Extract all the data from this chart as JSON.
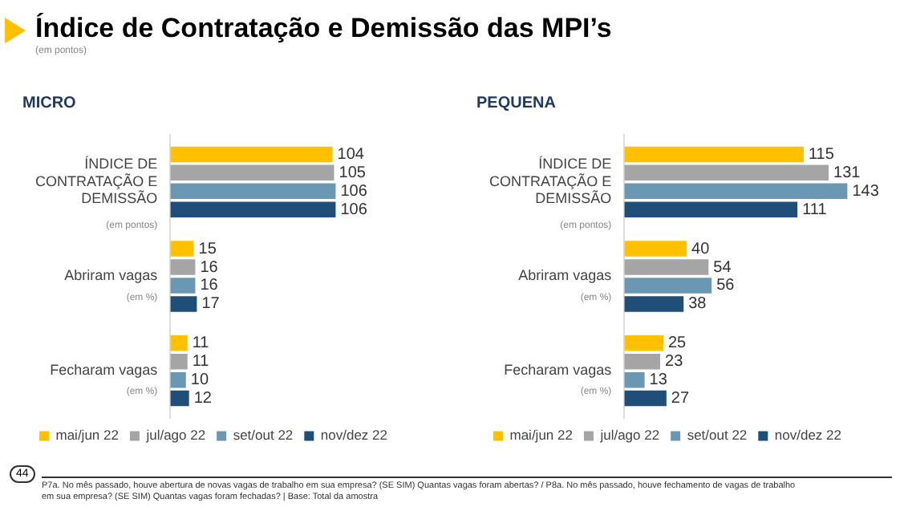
{
  "chart_data": [
    {
      "type": "other",
      "title": "Índice de Contratação e Demissão das MPI’s",
      "subtitle": "(em pontos)",
      "annotations": [
        "44",
        "P7a. No mês passado, houve abertura de novas vagas de trabalho em sua empresa? (SE SIM) Quantas vagas foram abertas? / P8a. No mês passado, houve fechamento de vagas de trabalho em sua empresa? (SE SIM) Quantas vagas foram fechadas? | Base: Total da amostra"
      ]
    },
    {
      "type": "bar",
      "orientation": "horizontal",
      "title": "MICRO",
      "categories": [
        "ÍNDICE DE CONTRATAÇÃO E DEMISSÃO",
        "Abriram vagas",
        "Fecharam vagas"
      ],
      "series": [
        {
          "name": "mai/jun 22",
          "color": "#ffc000",
          "values": [
            104,
            15,
            11
          ]
        },
        {
          "name": "jul/ago 22",
          "color": "#a5a5a5",
          "values": [
            105,
            16,
            11
          ]
        },
        {
          "name": "set/out 22",
          "color": "#6a98b4",
          "values": [
            106,
            16,
            10
          ]
        },
        {
          "name": "nov/dez 22",
          "color": "#1f4e79",
          "values": [
            106,
            17,
            12
          ]
        }
      ],
      "tick_labels": "y",
      "data_labels": true,
      "legend": "bottom",
      "annotations": [
        "(em pontos)",
        "(em %)",
        "(em %)"
      ]
    },
    {
      "type": "bar",
      "orientation": "horizontal",
      "title": "PEQUENA",
      "categories": [
        "ÍNDICE DE CONTRATAÇÃO E DEMISSÃO",
        "Abriram vagas",
        "Fecharam vagas"
      ],
      "series": [
        {
          "name": "mai/jun 22",
          "color": "#ffc000",
          "values": [
            115,
            40,
            25
          ]
        },
        {
          "name": "jul/ago 22",
          "color": "#a5a5a5",
          "values": [
            131,
            54,
            23
          ]
        },
        {
          "name": "set/out 22",
          "color": "#6a98b4",
          "values": [
            143,
            56,
            13
          ]
        },
        {
          "name": "nov/dez 22",
          "color": "#1f4e79",
          "values": [
            111,
            38,
            27
          ]
        }
      ],
      "tick_labels": "y",
      "data_labels": true,
      "legend": "bottom",
      "annotations": [
        "(em pontos)",
        "(em %)",
        "(em %)"
      ]
    }
  ]
}
